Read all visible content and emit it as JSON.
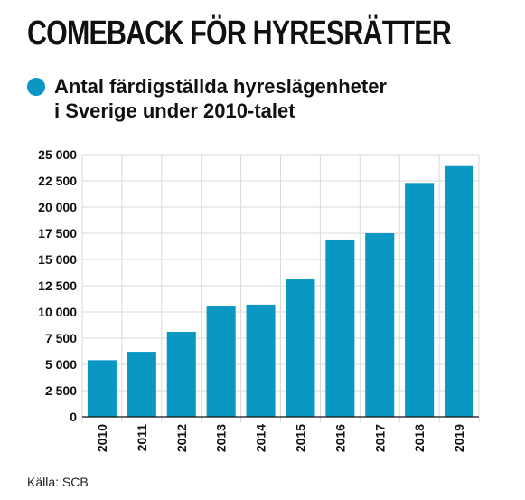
{
  "header": {
    "title": "COMEBACK FÖR HYRESRÄTTER",
    "subtitle": "Antal färdigställda hyreslägenheter\ni Sverige under 2010-talet",
    "accent_color": "#0a97c4"
  },
  "footer": {
    "source": "Källa: SCB"
  },
  "chart_data": {
    "type": "bar",
    "title": "",
    "xlabel": "",
    "ylabel": "",
    "categories": [
      "2010",
      "2011",
      "2012",
      "2013",
      "2014",
      "2015",
      "2016",
      "2017",
      "2018",
      "2019"
    ],
    "values": [
      5400,
      6200,
      8100,
      10600,
      10700,
      13100,
      16900,
      17500,
      22300,
      23900
    ],
    "ylim": [
      0,
      25000
    ],
    "yticks": [
      0,
      2500,
      5000,
      7500,
      10000,
      12500,
      15000,
      17500,
      20000,
      22500,
      25000
    ],
    "ytick_labels": [
      "0",
      "2 500",
      "5 000",
      "7 500",
      "10 000",
      "12 500",
      "15 000",
      "17 500",
      "20 000",
      "22 500",
      "25 000"
    ],
    "bar_color": "#0a97c4",
    "grid": true,
    "legend": "none"
  }
}
